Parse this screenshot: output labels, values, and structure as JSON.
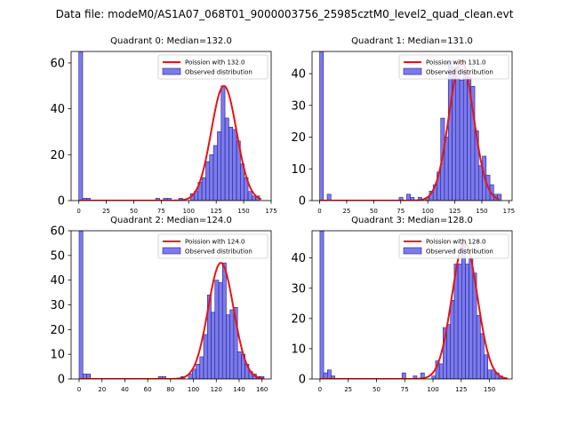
{
  "figure": {
    "suptitle": "Data file: modeM0/AS1A07_068T01_9000003756_25985cztM0_level2_quad_clean.evt"
  },
  "colors": {
    "hist_fill": "#7b7bea",
    "hist_edge": "#2020a0",
    "poisson_line": "#ee1111",
    "axis": "#000000"
  },
  "chart_data": [
    {
      "type": "bar",
      "title": "Quadrant 0: Median=132.0",
      "legend": {
        "placement": "top-right",
        "line_label": "Poission with 132.0",
        "bar_label": "Observed distribution"
      },
      "median": 132.0,
      "bin_width": 3.5,
      "xlim": [
        -7,
        175
      ],
      "ylim": [
        0,
        65
      ],
      "xticks": [
        "0",
        "25",
        "50",
        "75",
        "100",
        "125",
        "150",
        "175"
      ],
      "xtick_values": [
        0,
        25,
        50,
        75,
        100,
        125,
        150,
        175
      ],
      "yticks": [
        "0",
        "20",
        "40",
        "60"
      ],
      "ytick_values": [
        0,
        20,
        40,
        60
      ],
      "bins": [
        {
          "x": 0,
          "y": 65
        },
        {
          "x": 3.5,
          "y": 1
        },
        {
          "x": 7,
          "y": 1
        },
        {
          "x": 70,
          "y": 1
        },
        {
          "x": 77,
          "y": 1
        },
        {
          "x": 80.5,
          "y": 1
        },
        {
          "x": 91,
          "y": 1
        },
        {
          "x": 101.5,
          "y": 3
        },
        {
          "x": 105,
          "y": 4
        },
        {
          "x": 108.5,
          "y": 8
        },
        {
          "x": 112,
          "y": 10
        },
        {
          "x": 115.5,
          "y": 17
        },
        {
          "x": 119,
          "y": 20
        },
        {
          "x": 122.5,
          "y": 24
        },
        {
          "x": 126,
          "y": 30
        },
        {
          "x": 129.5,
          "y": 50
        },
        {
          "x": 133,
          "y": 36
        },
        {
          "x": 136.5,
          "y": 32
        },
        {
          "x": 140,
          "y": 31
        },
        {
          "x": 143.5,
          "y": 26
        },
        {
          "x": 147,
          "y": 16
        },
        {
          "x": 150.5,
          "y": 10
        },
        {
          "x": 154,
          "y": 4
        },
        {
          "x": 157.5,
          "y": 2
        },
        {
          "x": 161,
          "y": 2
        }
      ],
      "poisson_scale": 3.5,
      "curve_xmin": 0,
      "curve_xmax": 166
    },
    {
      "type": "bar",
      "title": "Quadrant 1: Median=131.0",
      "legend": {
        "placement": "top-right",
        "line_label": "Poission with 131.0",
        "bar_label": "Observed distribution"
      },
      "median": 131.0,
      "bin_width": 3.5,
      "xlim": [
        -7,
        178
      ],
      "ylim": [
        0,
        47
      ],
      "xticks": [
        "0",
        "25",
        "50",
        "75",
        "100",
        "125",
        "150",
        "175"
      ],
      "xtick_values": [
        0,
        25,
        50,
        75,
        100,
        125,
        150,
        175
      ],
      "yticks": [
        "0",
        "10",
        "20",
        "30",
        "40"
      ],
      "ytick_values": [
        0,
        10,
        20,
        30,
        40
      ],
      "bins": [
        {
          "x": 0,
          "y": 47
        },
        {
          "x": 7,
          "y": 2
        },
        {
          "x": 73.5,
          "y": 1
        },
        {
          "x": 80.5,
          "y": 2
        },
        {
          "x": 84,
          "y": 1
        },
        {
          "x": 91,
          "y": 1
        },
        {
          "x": 98,
          "y": 1
        },
        {
          "x": 101.5,
          "y": 3
        },
        {
          "x": 105,
          "y": 5
        },
        {
          "x": 108.5,
          "y": 9
        },
        {
          "x": 112,
          "y": 26
        },
        {
          "x": 115.5,
          "y": 20
        },
        {
          "x": 119,
          "y": 44
        },
        {
          "x": 122.5,
          "y": 42
        },
        {
          "x": 126,
          "y": 42
        },
        {
          "x": 129.5,
          "y": 38
        },
        {
          "x": 133,
          "y": 41
        },
        {
          "x": 136.5,
          "y": 39
        },
        {
          "x": 140,
          "y": 36
        },
        {
          "x": 143.5,
          "y": 22
        },
        {
          "x": 147,
          "y": 11
        },
        {
          "x": 150.5,
          "y": 14
        },
        {
          "x": 154,
          "y": 8
        },
        {
          "x": 157.5,
          "y": 5
        },
        {
          "x": 161,
          "y": 2
        },
        {
          "x": 164.5,
          "y": 2
        }
      ],
      "poisson_scale": 3.3,
      "curve_xmin": 0,
      "curve_xmax": 166
    },
    {
      "type": "bar",
      "title": "Quadrant 2: Median=124.0",
      "legend": {
        "placement": "top-right",
        "line_label": "Poission with 124.0",
        "bar_label": "Observed distribution"
      },
      "median": 124.0,
      "bin_width": 3.3,
      "xlim": [
        -7,
        168
      ],
      "ylim": [
        0,
        60
      ],
      "xticks": [
        "0",
        "20",
        "40",
        "60",
        "80",
        "100",
        "120",
        "140",
        "160"
      ],
      "xtick_values": [
        0,
        20,
        40,
        60,
        80,
        100,
        120,
        140,
        160
      ],
      "yticks": [
        "0",
        "10",
        "20",
        "30",
        "40",
        "50",
        "60"
      ],
      "ytick_values": [
        0,
        10,
        20,
        30,
        40,
        50,
        60
      ],
      "bins": [
        {
          "x": 0,
          "y": 60
        },
        {
          "x": 3.3,
          "y": 2
        },
        {
          "x": 6.6,
          "y": 2
        },
        {
          "x": 69.3,
          "y": 1
        },
        {
          "x": 72.6,
          "y": 1
        },
        {
          "x": 89.1,
          "y": 1
        },
        {
          "x": 95.7,
          "y": 2
        },
        {
          "x": 99,
          "y": 4
        },
        {
          "x": 102.3,
          "y": 6
        },
        {
          "x": 105.6,
          "y": 9
        },
        {
          "x": 108.9,
          "y": 18
        },
        {
          "x": 112.2,
          "y": 34
        },
        {
          "x": 115.5,
          "y": 27
        },
        {
          "x": 118.8,
          "y": 40
        },
        {
          "x": 122.1,
          "y": 39
        },
        {
          "x": 125.4,
          "y": 47
        },
        {
          "x": 128.7,
          "y": 26
        },
        {
          "x": 132,
          "y": 28
        },
        {
          "x": 135.3,
          "y": 29
        },
        {
          "x": 138.6,
          "y": 11
        },
        {
          "x": 141.9,
          "y": 10
        },
        {
          "x": 145.2,
          "y": 6
        },
        {
          "x": 148.5,
          "y": 3
        },
        {
          "x": 151.8,
          "y": 2
        },
        {
          "x": 155.1,
          "y": 1
        },
        {
          "x": 158.4,
          "y": 1
        }
      ],
      "poisson_scale": 3.3,
      "curve_xmin": 0,
      "curve_xmax": 162
    },
    {
      "type": "bar",
      "title": "Quadrant 3: Median=128.0",
      "legend": {
        "placement": "top-right",
        "line_label": "Poission with 128.0",
        "bar_label": "Observed distribution"
      },
      "median": 128.0,
      "bin_width": 3.3,
      "xlim": [
        -7,
        170
      ],
      "ylim": [
        0,
        49
      ],
      "xticks": [
        "0",
        "25",
        "50",
        "75",
        "100",
        "125",
        "150"
      ],
      "xtick_values": [
        0,
        25,
        50,
        75,
        100,
        125,
        150
      ],
      "yticks": [
        "0",
        "10",
        "20",
        "30",
        "40"
      ],
      "ytick_values": [
        0,
        10,
        20,
        30,
        40
      ],
      "bins": [
        {
          "x": 0,
          "y": 49
        },
        {
          "x": 3.3,
          "y": 2
        },
        {
          "x": 6.6,
          "y": 3
        },
        {
          "x": 9.9,
          "y": 1
        },
        {
          "x": 72.6,
          "y": 2
        },
        {
          "x": 82.5,
          "y": 1
        },
        {
          "x": 89.1,
          "y": 2
        },
        {
          "x": 99,
          "y": 1
        },
        {
          "x": 102.3,
          "y": 6
        },
        {
          "x": 105.6,
          "y": 5
        },
        {
          "x": 108.9,
          "y": 17
        },
        {
          "x": 112.2,
          "y": 18
        },
        {
          "x": 115.5,
          "y": 26
        },
        {
          "x": 118.8,
          "y": 38
        },
        {
          "x": 122.1,
          "y": 38
        },
        {
          "x": 125.4,
          "y": 45
        },
        {
          "x": 128.7,
          "y": 38
        },
        {
          "x": 132,
          "y": 40
        },
        {
          "x": 135.3,
          "y": 35
        },
        {
          "x": 138.6,
          "y": 21
        },
        {
          "x": 141.9,
          "y": 15
        },
        {
          "x": 145.2,
          "y": 8
        },
        {
          "x": 148.5,
          "y": 3
        },
        {
          "x": 151.8,
          "y": 3
        },
        {
          "x": 155.1,
          "y": 2
        },
        {
          "x": 158.4,
          "y": 1
        }
      ],
      "poisson_scale": 3.3,
      "curve_xmin": 0,
      "curve_xmax": 166
    }
  ]
}
